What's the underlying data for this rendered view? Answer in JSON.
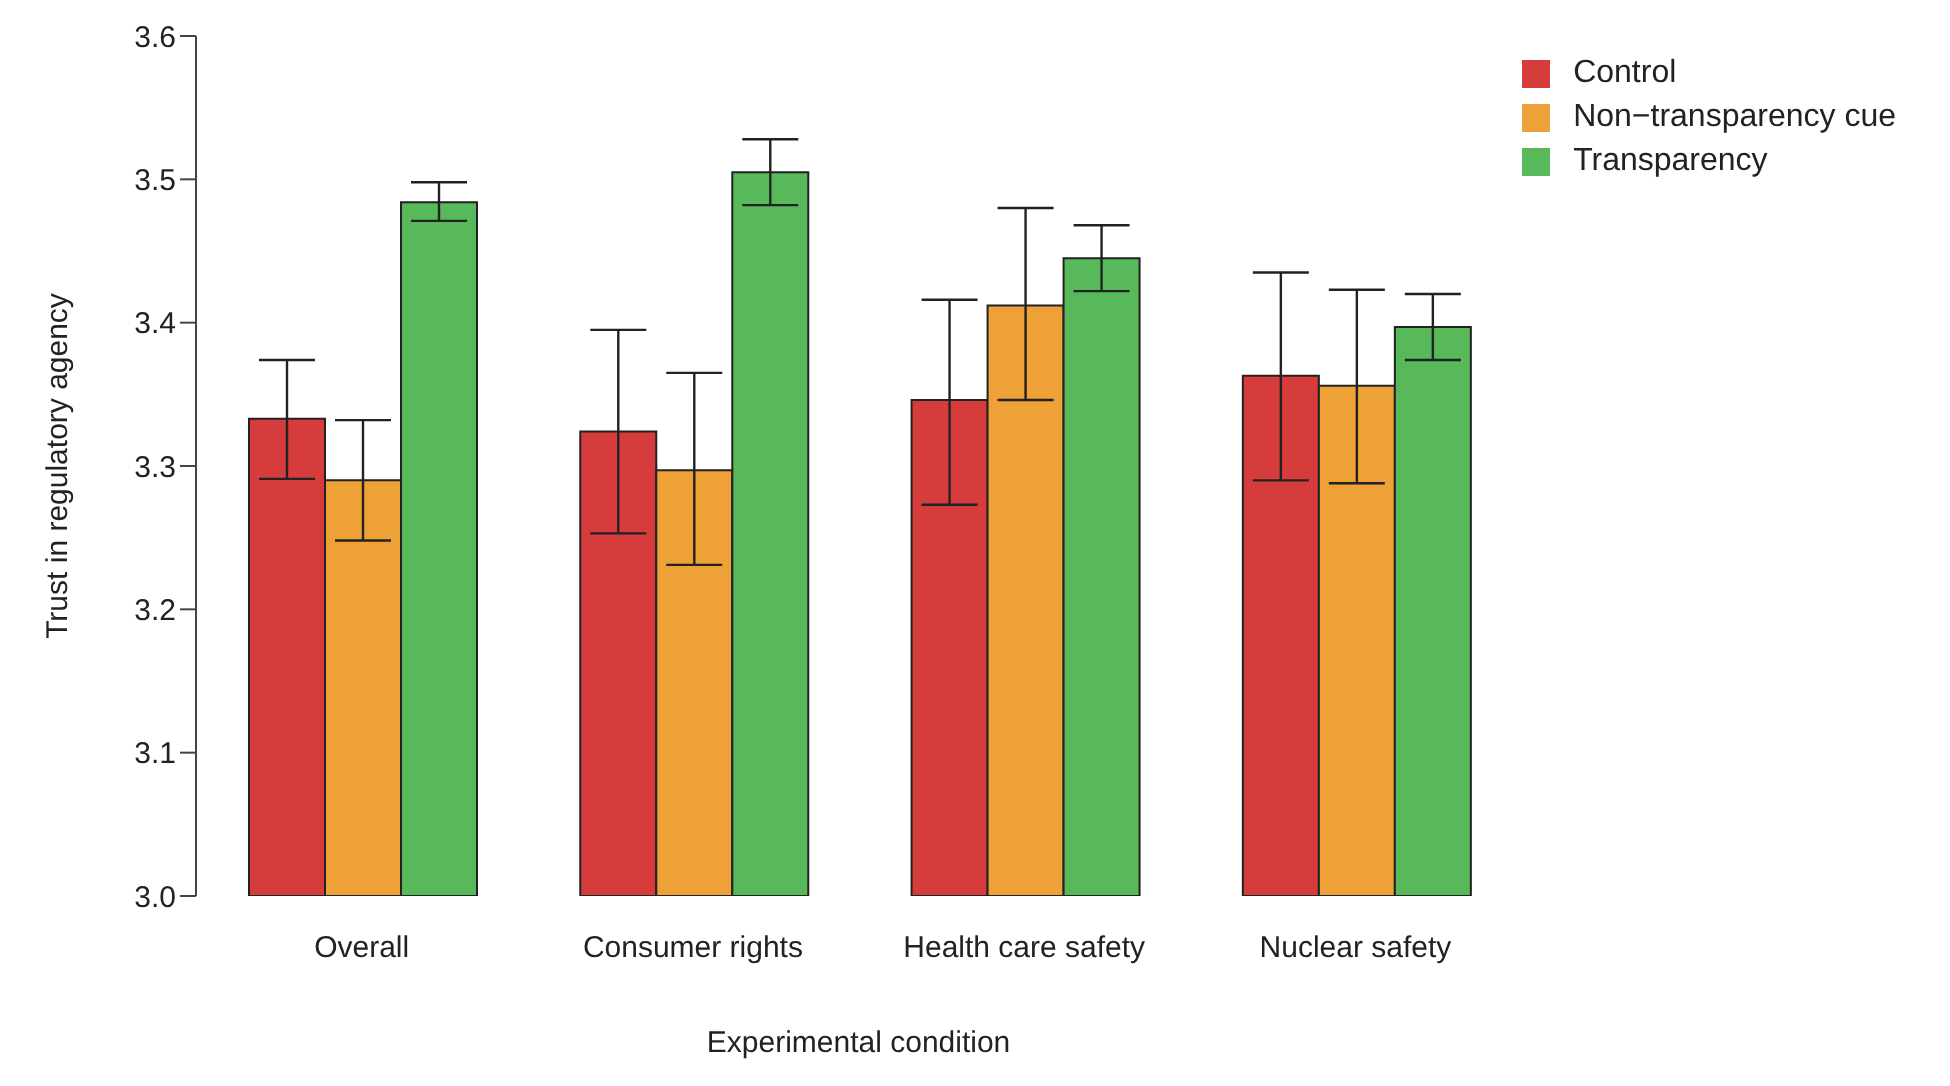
{
  "chart_data": {
    "type": "bar",
    "xlabel": "Experimental condition",
    "ylabel": "Trust in regulatory agency",
    "categories": [
      "Overall",
      "Consumer rights",
      "Health care safety",
      "Nuclear safety"
    ],
    "series": [
      {
        "name": "Control",
        "color": "#d63c3c",
        "values": [
          3.333,
          3.324,
          3.346,
          3.363
        ],
        "errors": [
          [
            3.291,
            3.374
          ],
          [
            3.253,
            3.395
          ],
          [
            3.273,
            3.416
          ],
          [
            3.29,
            3.435
          ]
        ]
      },
      {
        "name": "Non−transparency cue",
        "color": "#eda136",
        "values": [
          3.29,
          3.297,
          3.412,
          3.356
        ],
        "errors": [
          [
            3.248,
            3.332
          ],
          [
            3.231,
            3.365
          ],
          [
            3.346,
            3.48
          ],
          [
            3.288,
            3.423
          ]
        ]
      },
      {
        "name": "Transparency",
        "color": "#57b95a",
        "values": [
          3.484,
          3.505,
          3.445,
          3.397
        ],
        "errors": [
          [
            3.471,
            3.498
          ],
          [
            3.482,
            3.528
          ],
          [
            3.422,
            3.468
          ],
          [
            3.374,
            3.42
          ]
        ]
      }
    ],
    "ylim": [
      3.0,
      3.6
    ],
    "yticks": [
      {
        "value": 3.0,
        "label": "3.0"
      },
      3.1,
      3.2,
      3.3,
      3.4,
      3.5,
      3.6
    ],
    "grid": false,
    "legend": "top right"
  }
}
